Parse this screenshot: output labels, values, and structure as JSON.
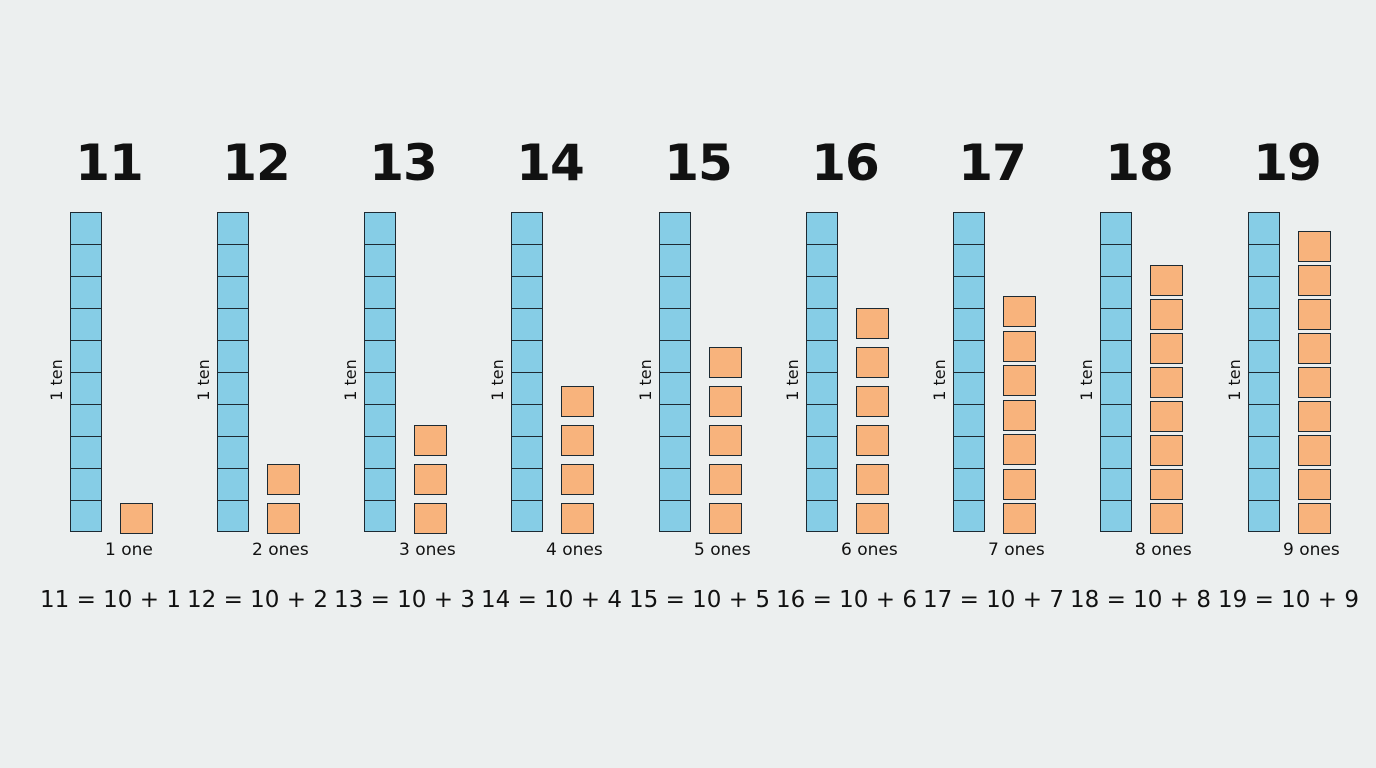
{
  "columns": [
    {
      "number": "11",
      "ten_label": "1 ten",
      "ones_count": 1,
      "ones_label": "1 one",
      "equation": "11 = 10 + 1"
    },
    {
      "number": "12",
      "ten_label": "1 ten",
      "ones_count": 2,
      "ones_label": "2 ones",
      "equation": "12 = 10 + 2"
    },
    {
      "number": "13",
      "ten_label": "1 ten",
      "ones_count": 3,
      "ones_label": "3 ones",
      "equation": "13 = 10 + 3"
    },
    {
      "number": "14",
      "ten_label": "1 ten",
      "ones_count": 4,
      "ones_label": "4 ones",
      "equation": "14 = 10 + 4"
    },
    {
      "number": "15",
      "ten_label": "1 ten",
      "ones_count": 5,
      "ones_label": "5 ones",
      "equation": "15 = 10 + 5"
    },
    {
      "number": "16",
      "ten_label": "1 ten",
      "ones_count": 6,
      "ones_label": "6 ones",
      "equation": "16 = 10 + 6"
    },
    {
      "number": "17",
      "ten_label": "1 ten",
      "ones_count": 7,
      "ones_label": "7 ones",
      "equation": "17 = 10 + 7"
    },
    {
      "number": "18",
      "ten_label": "1 ten",
      "ones_count": 8,
      "ones_label": "8 ones",
      "equation": "18 = 10 + 8"
    },
    {
      "number": "19",
      "ten_label": "1 ten",
      "ones_count": 9,
      "ones_label": "9 ones",
      "equation": "19 = 10 + 9"
    }
  ],
  "colors": {
    "background": "#ecefef",
    "ten_rod": "#86cde6",
    "one_cube": "#f8b37c",
    "outline": "#1d2a33",
    "text": "#111111"
  }
}
